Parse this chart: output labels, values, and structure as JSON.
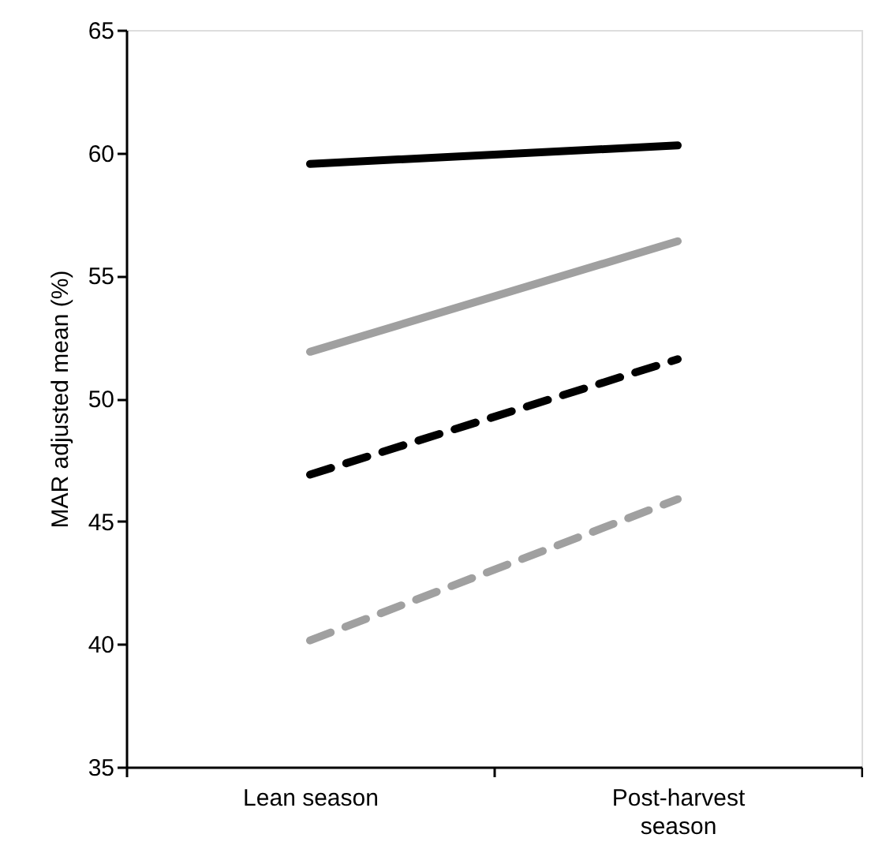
{
  "chart_data": {
    "type": "line",
    "ylabel": "MAR adjusted mean (%)",
    "categories": [
      "Lean season",
      "Post-harvest season"
    ],
    "series": [
      {
        "color": "#000000",
        "line_style": "solid",
        "values": [
          59.55,
          60.3
        ]
      },
      {
        "color": "#a0a0a0",
        "line_style": "solid",
        "values": [
          51.9,
          56.4
        ]
      },
      {
        "color": "#000000",
        "line_style": "dashed",
        "values": [
          46.9,
          51.6
        ]
      },
      {
        "color": "#a0a0a0",
        "line_style": "dashed",
        "values": [
          40.15,
          45.9
        ]
      }
    ],
    "ylim": [
      35,
      65
    ],
    "yticks": [
      35,
      40,
      45,
      50,
      55,
      60,
      65
    ],
    "grid": false
  }
}
